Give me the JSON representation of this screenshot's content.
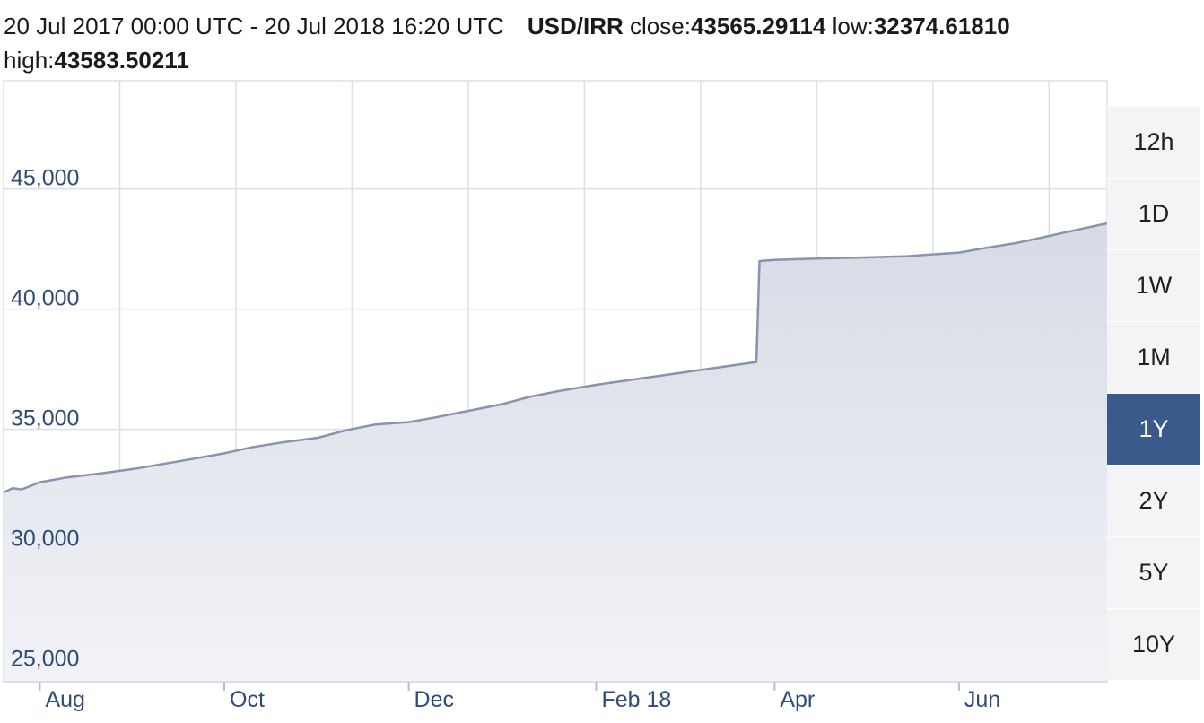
{
  "header": {
    "range": "20 Jul 2017 00:00 UTC - 20 Jul 2018 16:20 UTC",
    "pair": "USD/IRR",
    "close_label": "close:",
    "close_value": "43565.29114",
    "low_label": "low:",
    "low_value": "32374.61810",
    "high_label": "high:",
    "high_value": "43583.50211"
  },
  "range_buttons": [
    {
      "label": "12h",
      "active": false
    },
    {
      "label": "1D",
      "active": false
    },
    {
      "label": "1W",
      "active": false
    },
    {
      "label": "1M",
      "active": false
    },
    {
      "label": "1Y",
      "active": true
    },
    {
      "label": "2Y",
      "active": false
    },
    {
      "label": "5Y",
      "active": false
    },
    {
      "label": "10Y",
      "active": false
    }
  ],
  "colors": {
    "line": "#8a93ad",
    "fill": "#dde1ea",
    "axis_text": "#2f4b77",
    "grid": "#dcdfe6",
    "active_button": "#3a5a8c"
  },
  "chart_data": {
    "type": "area",
    "xlim": [
      "2017-07-20",
      "2018-07-20"
    ],
    "ylim": [
      24500,
      49500
    ],
    "grid": true,
    "yticks": [
      {
        "value": 25000,
        "label": "25,000"
      },
      {
        "value": 30000,
        "label": "30,000"
      },
      {
        "value": 35000,
        "label": "35,000"
      },
      {
        "value": 40000,
        "label": "40,000"
      },
      {
        "value": 45000,
        "label": "45,000"
      }
    ],
    "xticks": [
      {
        "date": "2017-08-01",
        "label": "Aug"
      },
      {
        "date": "2017-10-01",
        "label": "Oct"
      },
      {
        "date": "2017-12-01",
        "label": "Dec"
      },
      {
        "date": "2018-02-01",
        "label": "Feb 18"
      },
      {
        "date": "2018-04-01",
        "label": "Apr"
      },
      {
        "date": "2018-06-01",
        "label": "Jun"
      }
    ],
    "series": [
      {
        "x": [
          "2017-07-20",
          "2017-07-23",
          "2017-07-26",
          "2017-08-01",
          "2017-08-10",
          "2017-08-20",
          "2017-09-01",
          "2017-09-15",
          "2017-10-01",
          "2017-10-10",
          "2017-10-20",
          "2017-11-01",
          "2017-11-10",
          "2017-11-20",
          "2017-12-01",
          "2017-12-10",
          "2017-12-20",
          "2018-01-01",
          "2018-01-10",
          "2018-01-20",
          "2018-02-01",
          "2018-02-15",
          "2018-03-01",
          "2018-03-15",
          "2018-03-26",
          "2018-03-27",
          "2018-04-01",
          "2018-04-15",
          "2018-05-01",
          "2018-05-15",
          "2018-06-01",
          "2018-06-10",
          "2018-06-20",
          "2018-07-01",
          "2018-07-10",
          "2018-07-20"
        ],
        "y": [
          32374.6,
          32550,
          32500,
          32800,
          33000,
          33150,
          33350,
          33650,
          34000,
          34250,
          34450,
          34650,
          34950,
          35200,
          35300,
          35500,
          35750,
          36050,
          36350,
          36600,
          36850,
          37100,
          37350,
          37600,
          37800,
          42000,
          42050,
          42100,
          42150,
          42200,
          42350,
          42550,
          42750,
          43050,
          43300,
          43565.3
        ]
      }
    ]
  }
}
